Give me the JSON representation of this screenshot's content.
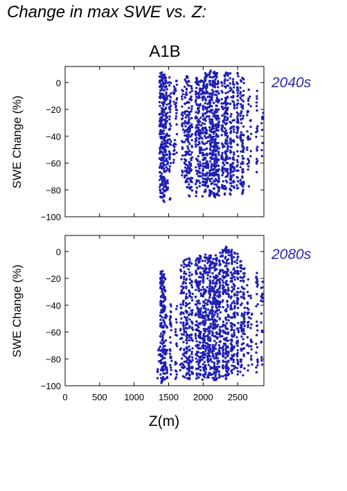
{
  "title": "Change in max SWE vs. Z:",
  "chart_data": {
    "type": "scatter",
    "scenario": "A1B",
    "xlabel": "Z(m)",
    "ylabel": "SWE Change (%)",
    "xlim": [
      0,
      2880
    ],
    "ylim": [
      -100,
      12
    ],
    "xticks": [
      0,
      500,
      1000,
      1500,
      2000,
      2500
    ],
    "yticks": [
      0,
      -20,
      -40,
      -60,
      -80,
      -100
    ],
    "point_color": "#1f1fb4",
    "label_color": "#2a2aa8",
    "grid": false,
    "panels": [
      {
        "label": "2040s",
        "columns": [
          {
            "x": 1380,
            "ymin": -90,
            "ymax": 7,
            "density": 1.0
          },
          {
            "x": 1405,
            "ymin": -88,
            "ymax": 8,
            "density": 1.0
          },
          {
            "x": 1430,
            "ymin": -89,
            "ymax": 6,
            "density": 0.9
          },
          {
            "x": 1455,
            "ymin": -85,
            "ymax": 7,
            "density": 0.9
          },
          {
            "x": 1480,
            "ymin": -80,
            "ymax": 0,
            "density": 0.6
          },
          {
            "x": 1520,
            "ymin": -88,
            "ymax": 5,
            "density": 0.7
          },
          {
            "x": 1580,
            "ymin": -65,
            "ymax": 0,
            "density": 0.4
          },
          {
            "x": 1610,
            "ymin": -60,
            "ymax": 2,
            "density": 0.4
          },
          {
            "x": 1700,
            "ymin": -70,
            "ymax": -5,
            "density": 0.5
          },
          {
            "x": 1740,
            "ymin": -75,
            "ymax": 3,
            "density": 0.6
          },
          {
            "x": 1770,
            "ymin": -80,
            "ymax": 5,
            "density": 0.8
          },
          {
            "x": 1800,
            "ymin": -86,
            "ymax": 4,
            "density": 0.7
          },
          {
            "x": 1830,
            "ymin": -82,
            "ymax": 3,
            "density": 0.6
          },
          {
            "x": 1900,
            "ymin": -85,
            "ymax": 4,
            "density": 0.8
          },
          {
            "x": 1930,
            "ymin": -80,
            "ymax": 3,
            "density": 0.7
          },
          {
            "x": 1960,
            "ymin": -78,
            "ymax": 4,
            "density": 0.7
          },
          {
            "x": 2000,
            "ymin": -85,
            "ymax": 5,
            "density": 0.8
          },
          {
            "x": 2030,
            "ymin": -84,
            "ymax": 8,
            "density": 0.9
          },
          {
            "x": 2060,
            "ymin": -80,
            "ymax": 6,
            "density": 0.8
          },
          {
            "x": 2100,
            "ymin": -86,
            "ymax": 9,
            "density": 1.0
          },
          {
            "x": 2130,
            "ymin": -82,
            "ymax": 7,
            "density": 0.9
          },
          {
            "x": 2160,
            "ymin": -86,
            "ymax": 8,
            "density": 1.0
          },
          {
            "x": 2190,
            "ymin": -84,
            "ymax": 9,
            "density": 1.0
          },
          {
            "x": 2220,
            "ymin": -86,
            "ymax": 6,
            "density": 0.9
          },
          {
            "x": 2280,
            "ymin": -80,
            "ymax": 8,
            "density": 0.8
          },
          {
            "x": 2320,
            "ymin": -85,
            "ymax": 9,
            "density": 0.9
          },
          {
            "x": 2350,
            "ymin": -80,
            "ymax": 7,
            "density": 0.8
          },
          {
            "x": 2400,
            "ymin": -84,
            "ymax": 10,
            "density": 0.9
          },
          {
            "x": 2440,
            "ymin": -80,
            "ymax": 5,
            "density": 0.7
          },
          {
            "x": 2500,
            "ymin": -85,
            "ymax": 8,
            "density": 0.8
          },
          {
            "x": 2550,
            "ymin": -78,
            "ymax": 5,
            "density": 0.6
          },
          {
            "x": 2580,
            "ymin": -86,
            "ymax": 4,
            "density": 0.7
          },
          {
            "x": 2650,
            "ymin": -82,
            "ymax": -5,
            "density": 0.4
          },
          {
            "x": 2690,
            "ymin": -55,
            "ymax": -10,
            "density": 0.3
          },
          {
            "x": 2780,
            "ymin": -70,
            "ymax": -5,
            "density": 0.4
          },
          {
            "x": 2860,
            "ymin": -60,
            "ymax": -15,
            "density": 0.3
          }
        ]
      },
      {
        "label": "2080s",
        "columns": [
          {
            "x": 1350,
            "ymin": -98,
            "ymax": -70,
            "density": 0.4
          },
          {
            "x": 1390,
            "ymin": -98,
            "ymax": -15,
            "density": 1.0
          },
          {
            "x": 1415,
            "ymin": -97,
            "ymax": -14,
            "density": 1.0
          },
          {
            "x": 1440,
            "ymin": -98,
            "ymax": -15,
            "density": 0.9
          },
          {
            "x": 1470,
            "ymin": -95,
            "ymax": -45,
            "density": 0.5
          },
          {
            "x": 1530,
            "ymin": -97,
            "ymax": -35,
            "density": 0.6
          },
          {
            "x": 1610,
            "ymin": -95,
            "ymax": -40,
            "density": 0.5
          },
          {
            "x": 1680,
            "ymin": -90,
            "ymax": -6,
            "density": 0.5
          },
          {
            "x": 1720,
            "ymin": -95,
            "ymax": -5,
            "density": 0.7
          },
          {
            "x": 1760,
            "ymin": -95,
            "ymax": -4,
            "density": 0.8
          },
          {
            "x": 1800,
            "ymin": -96,
            "ymax": -5,
            "density": 0.8
          },
          {
            "x": 1840,
            "ymin": -93,
            "ymax": -8,
            "density": 0.6
          },
          {
            "x": 1900,
            "ymin": -95,
            "ymax": -5,
            "density": 0.8
          },
          {
            "x": 1930,
            "ymin": -94,
            "ymax": -4,
            "density": 0.8
          },
          {
            "x": 1960,
            "ymin": -95,
            "ymax": -3,
            "density": 0.8
          },
          {
            "x": 2000,
            "ymin": -96,
            "ymax": -5,
            "density": 0.9
          },
          {
            "x": 2030,
            "ymin": -95,
            "ymax": -2,
            "density": 0.9
          },
          {
            "x": 2070,
            "ymin": -94,
            "ymax": -4,
            "density": 0.8
          },
          {
            "x": 2100,
            "ymin": -96,
            "ymax": -3,
            "density": 1.0
          },
          {
            "x": 2140,
            "ymin": -95,
            "ymax": -5,
            "density": 0.9
          },
          {
            "x": 2170,
            "ymin": -96,
            "ymax": -2,
            "density": 1.0
          },
          {
            "x": 2200,
            "ymin": -95,
            "ymax": -4,
            "density": 1.0
          },
          {
            "x": 2240,
            "ymin": -96,
            "ymax": 2,
            "density": 0.9
          },
          {
            "x": 2290,
            "ymin": -94,
            "ymax": 3,
            "density": 0.8
          },
          {
            "x": 2330,
            "ymin": -95,
            "ymax": 4,
            "density": 0.9
          },
          {
            "x": 2360,
            "ymin": -92,
            "ymax": 3,
            "density": 0.8
          },
          {
            "x": 2410,
            "ymin": -95,
            "ymax": 2,
            "density": 0.9
          },
          {
            "x": 2450,
            "ymin": -90,
            "ymax": 0,
            "density": 0.7
          },
          {
            "x": 2500,
            "ymin": -94,
            "ymax": 0,
            "density": 0.8
          },
          {
            "x": 2550,
            "ymin": -90,
            "ymax": -5,
            "density": 0.6
          },
          {
            "x": 2590,
            "ymin": -94,
            "ymax": -8,
            "density": 0.7
          },
          {
            "x": 2650,
            "ymin": -90,
            "ymax": -20,
            "density": 0.5
          },
          {
            "x": 2700,
            "ymin": -85,
            "ymax": -30,
            "density": 0.4
          },
          {
            "x": 2780,
            "ymin": -90,
            "ymax": -15,
            "density": 0.5
          },
          {
            "x": 2850,
            "ymin": -85,
            "ymax": -20,
            "density": 0.4
          }
        ]
      }
    ]
  }
}
